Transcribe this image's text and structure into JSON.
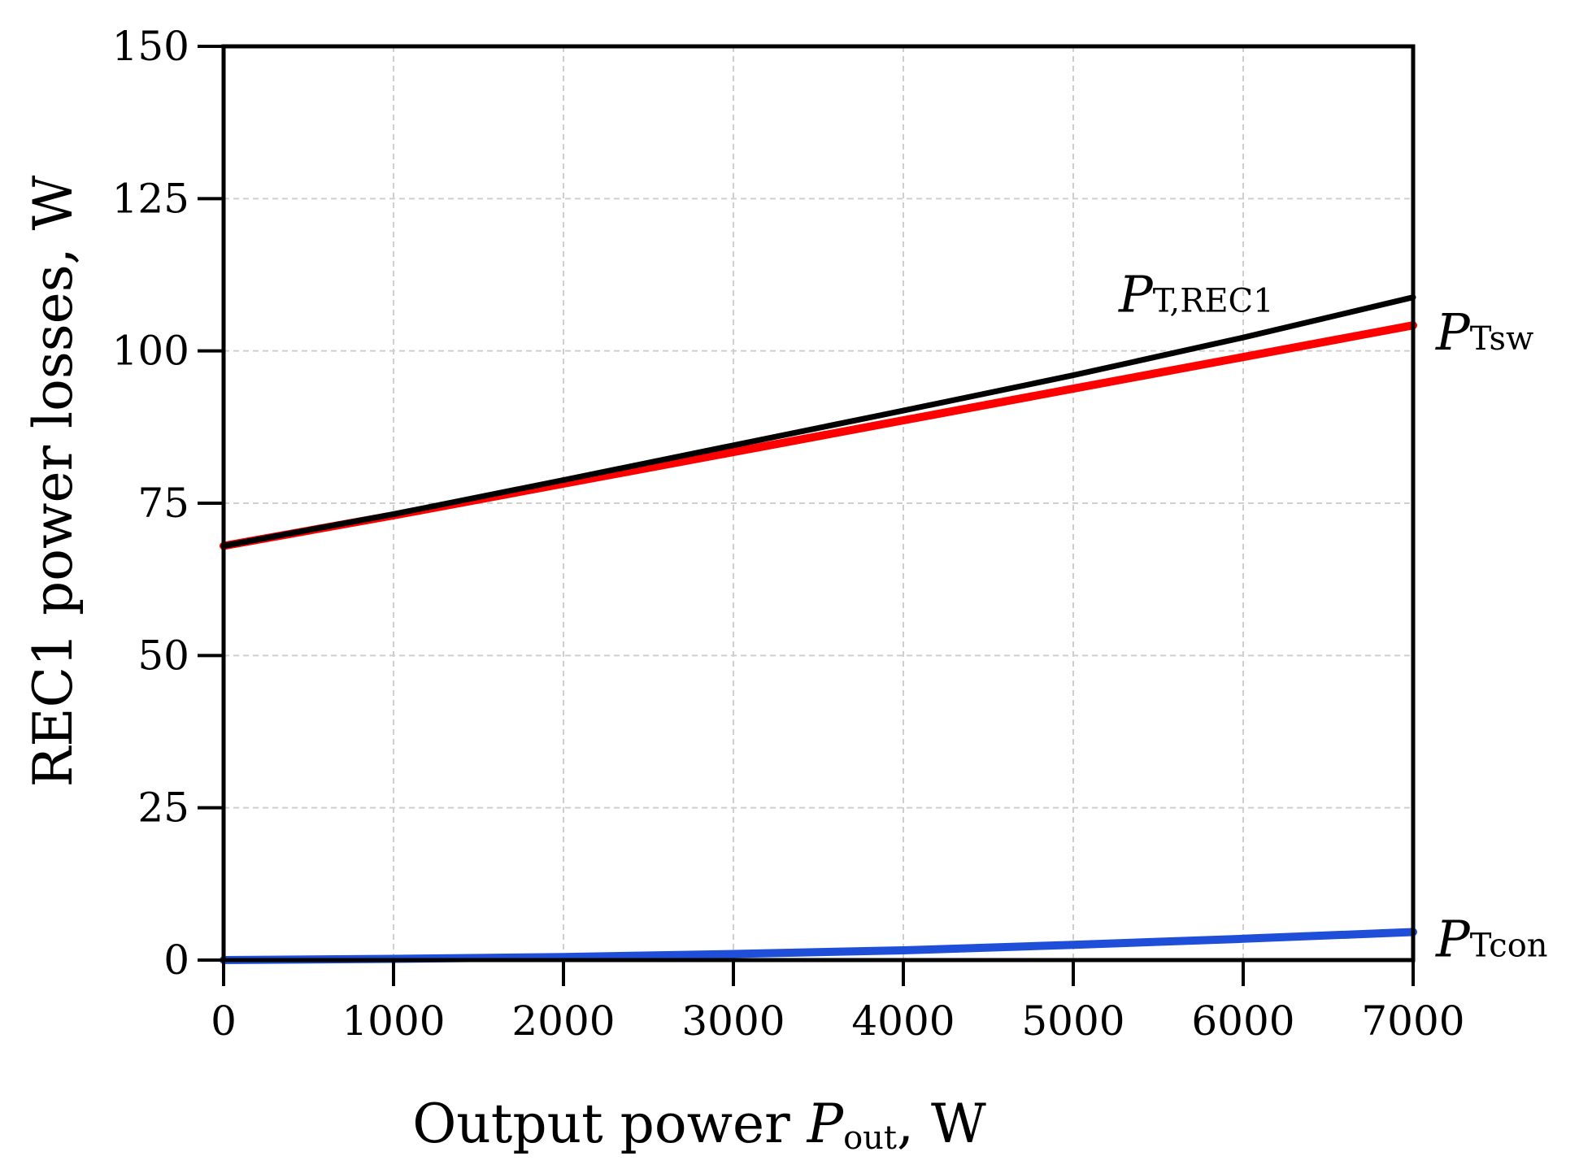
{
  "chart_data": {
    "type": "line",
    "title": "",
    "xlabel": {
      "prefix": "Output power ",
      "symbol": "P",
      "subscript": "out",
      "suffix": ", W"
    },
    "ylabel": "REC1 power losses, W",
    "xlim": [
      0,
      7000
    ],
    "ylim": [
      0,
      150
    ],
    "xticks": [
      0,
      1000,
      2000,
      3000,
      4000,
      5000,
      6000,
      7000
    ],
    "yticks": [
      0,
      25,
      50,
      75,
      100,
      125,
      150
    ],
    "grid": true,
    "x": [
      0,
      1000,
      2000,
      3000,
      4000,
      5000,
      6000,
      7000
    ],
    "series": [
      {
        "name": "PT,REC1",
        "label_symbol": "P",
        "label_subscript": "T,REC1",
        "label_position": "above-line-near-end",
        "color": "#000000",
        "values": [
          68,
          73.2,
          78.8,
          84.5,
          90.2,
          96,
          102.2,
          108.8
        ]
      },
      {
        "name": "PTsw",
        "label_symbol": "P",
        "label_subscript": "Tsw",
        "label_position": "right-of-end",
        "color": "#ff0000",
        "values": [
          68,
          73,
          78.2,
          83.4,
          88.6,
          93.8,
          99,
          104.2
        ]
      },
      {
        "name": "PTcon",
        "label_symbol": "P",
        "label_subscript": "Tcon",
        "label_position": "right-of-end",
        "color": "#1f4fd8",
        "values": [
          0,
          0.2,
          0.5,
          1.0,
          1.6,
          2.5,
          3.5,
          4.6
        ]
      }
    ]
  }
}
